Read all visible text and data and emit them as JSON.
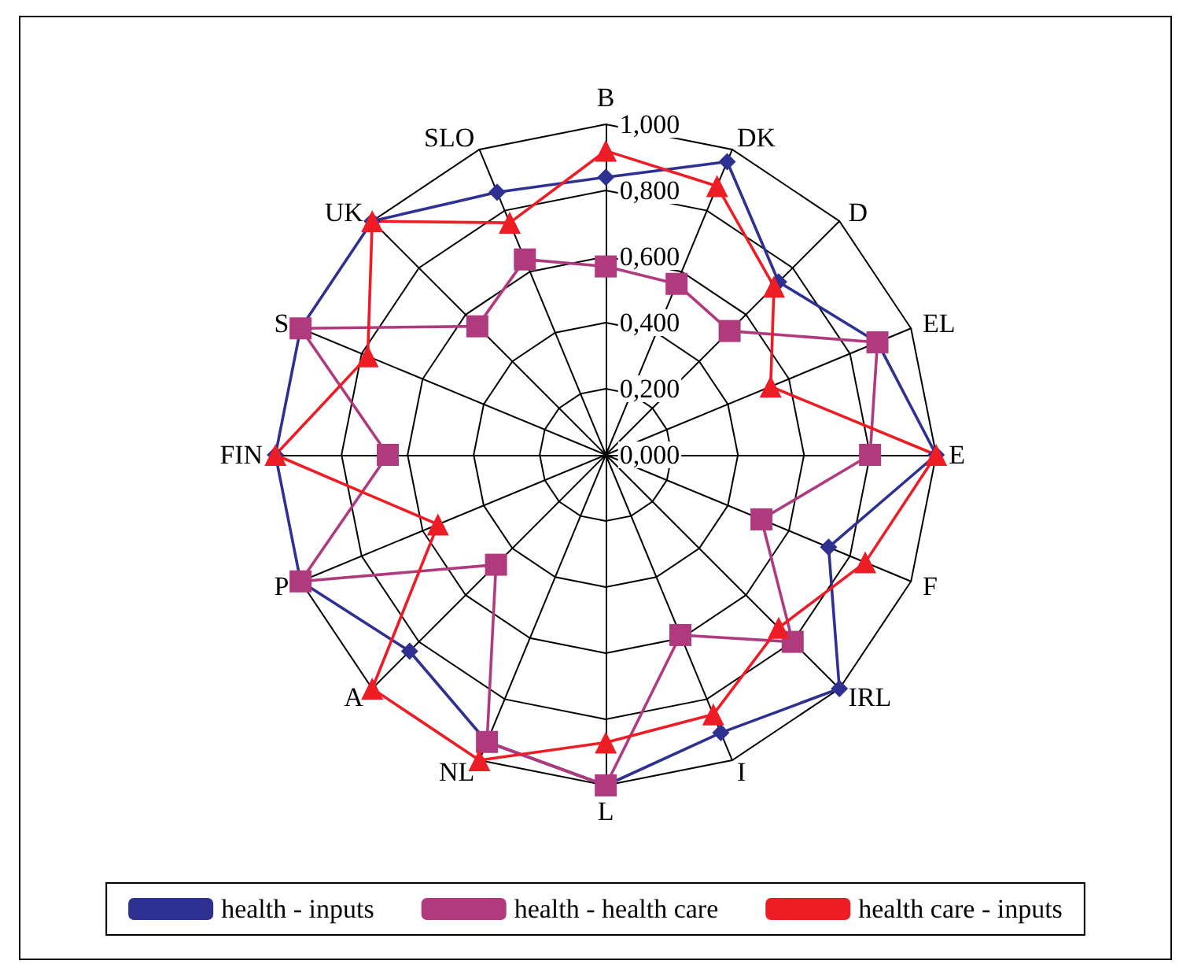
{
  "chart_data": {
    "type": "radar",
    "categories": [
      "B",
      "DK",
      "D",
      "EL",
      "E",
      "F",
      "IRL",
      "I",
      "L",
      "NL",
      "A",
      "P",
      "FIN",
      "S",
      "UK",
      "SLO"
    ],
    "ylim": [
      0,
      1
    ],
    "yticks": [
      {
        "value": 0,
        "label": "0,000"
      },
      {
        "value": 0.2,
        "label": "0,200"
      },
      {
        "value": 0.4,
        "label": "0,400"
      },
      {
        "value": 0.6,
        "label": "0,600"
      },
      {
        "value": 0.8,
        "label": "0,800"
      },
      {
        "value": 1,
        "label": "1,000"
      }
    ],
    "series": [
      {
        "name": "health - inputs",
        "color": "#2e3192",
        "marker": "diamond",
        "values": [
          0.84,
          0.96,
          0.74,
          0.89,
          1.0,
          0.73,
          1.0,
          0.91,
          1.0,
          0.94,
          0.84,
          1.0,
          1.0,
          1.0,
          1.0,
          0.86
        ]
      },
      {
        "name": "health - health care",
        "color": "#b03a7e",
        "marker": "square",
        "values": [
          0.57,
          0.56,
          0.53,
          0.89,
          0.8,
          0.51,
          0.8,
          0.59,
          1.0,
          0.94,
          0.47,
          1.0,
          0.66,
          1.0,
          0.55,
          0.64
        ]
      },
      {
        "name": "health care - inputs",
        "color": "#ee1c25",
        "marker": "triangle",
        "values": [
          0.92,
          0.88,
          0.72,
          0.54,
          1.0,
          0.85,
          0.74,
          0.85,
          0.87,
          1.0,
          1.0,
          0.55,
          1.0,
          0.78,
          1.0,
          0.76
        ]
      }
    ],
    "line_style": "solid",
    "grid": true,
    "legend": "bottom"
  }
}
